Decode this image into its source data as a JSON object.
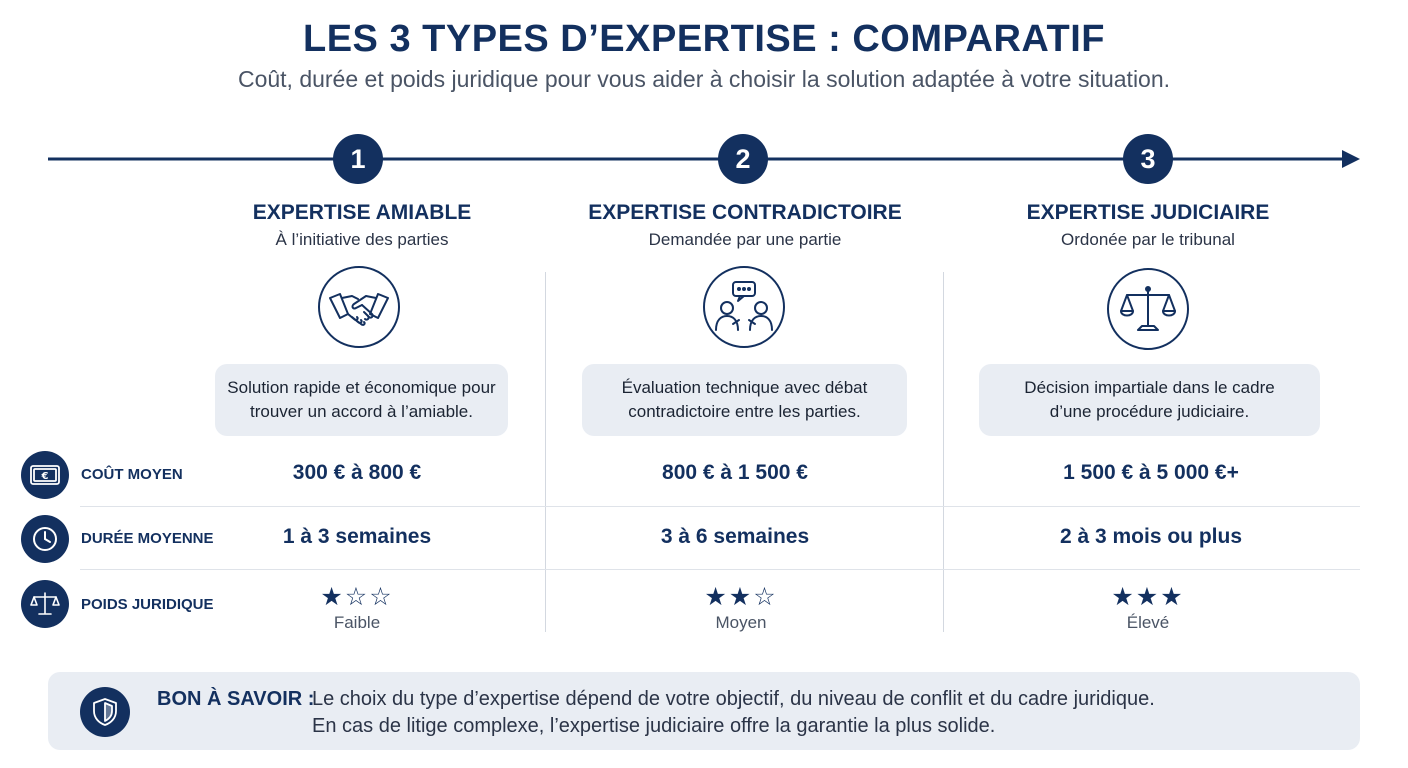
{
  "header": {
    "title": "LES 3 TYPES D’EXPERTISE : COMPARATIF",
    "subtitle": "Coût, durée et poids juridique pour vous aider à choisir la solution adaptée à votre situation."
  },
  "rows": {
    "cost_label": "COÛT MOYEN",
    "duration_label": "DURÉE MOYENNE",
    "legal_label": "POIDS JURIDIQUE"
  },
  "columns": [
    {
      "number": "1",
      "title": "EXPERTISE AMIABLE",
      "subtitle": "À l’initiative des parties",
      "icon": "handshake-icon",
      "desc_line1": "Solution rapide et économique pour",
      "desc_line2": "trouver un accord à l’amiable.",
      "cost": "300 € à 800 €",
      "duration": "1 à 3 semaines",
      "stars_filled": 1,
      "stars_total": 3,
      "legal_weight": "Faible"
    },
    {
      "number": "2",
      "title": "EXPERTISE CONTRADICTOIRE",
      "subtitle": "Demandée par une partie",
      "icon": "discussion-icon",
      "desc_line1": "Évaluation technique avec débat",
      "desc_line2": "contradictoire entre les parties.",
      "cost": "800 € à 1 500 €",
      "duration": "3 à 6 semaines",
      "stars_filled": 2,
      "stars_total": 3,
      "legal_weight": "Moyen"
    },
    {
      "number": "3",
      "title": "EXPERTISE JUDICIAIRE",
      "subtitle": "Ordonée par le tribunal",
      "icon": "scales-icon",
      "desc_line1": "Décision impartiale dans le cadre",
      "desc_line2": "d’une procédure judiciaire.",
      "cost": "1 500 € à 5 000 €+",
      "duration": "2 à 3 mois ou plus",
      "stars_filled": 3,
      "stars_total": 3,
      "legal_weight": "Élevé"
    }
  ],
  "banner": {
    "label": "BON À SAVOIR :",
    "line1": "Le choix du type d’expertise dépend de votre objectif, du niveau de conflit et du cadre juridique.",
    "line2": "En cas de litige complexe, l’expertise judiciaire offre la garantie la plus solide.",
    "icon": "shield-icon"
  },
  "colors": {
    "primary": "#13305f",
    "box_bg": "#e9edf3",
    "muted": "#4a5465"
  }
}
